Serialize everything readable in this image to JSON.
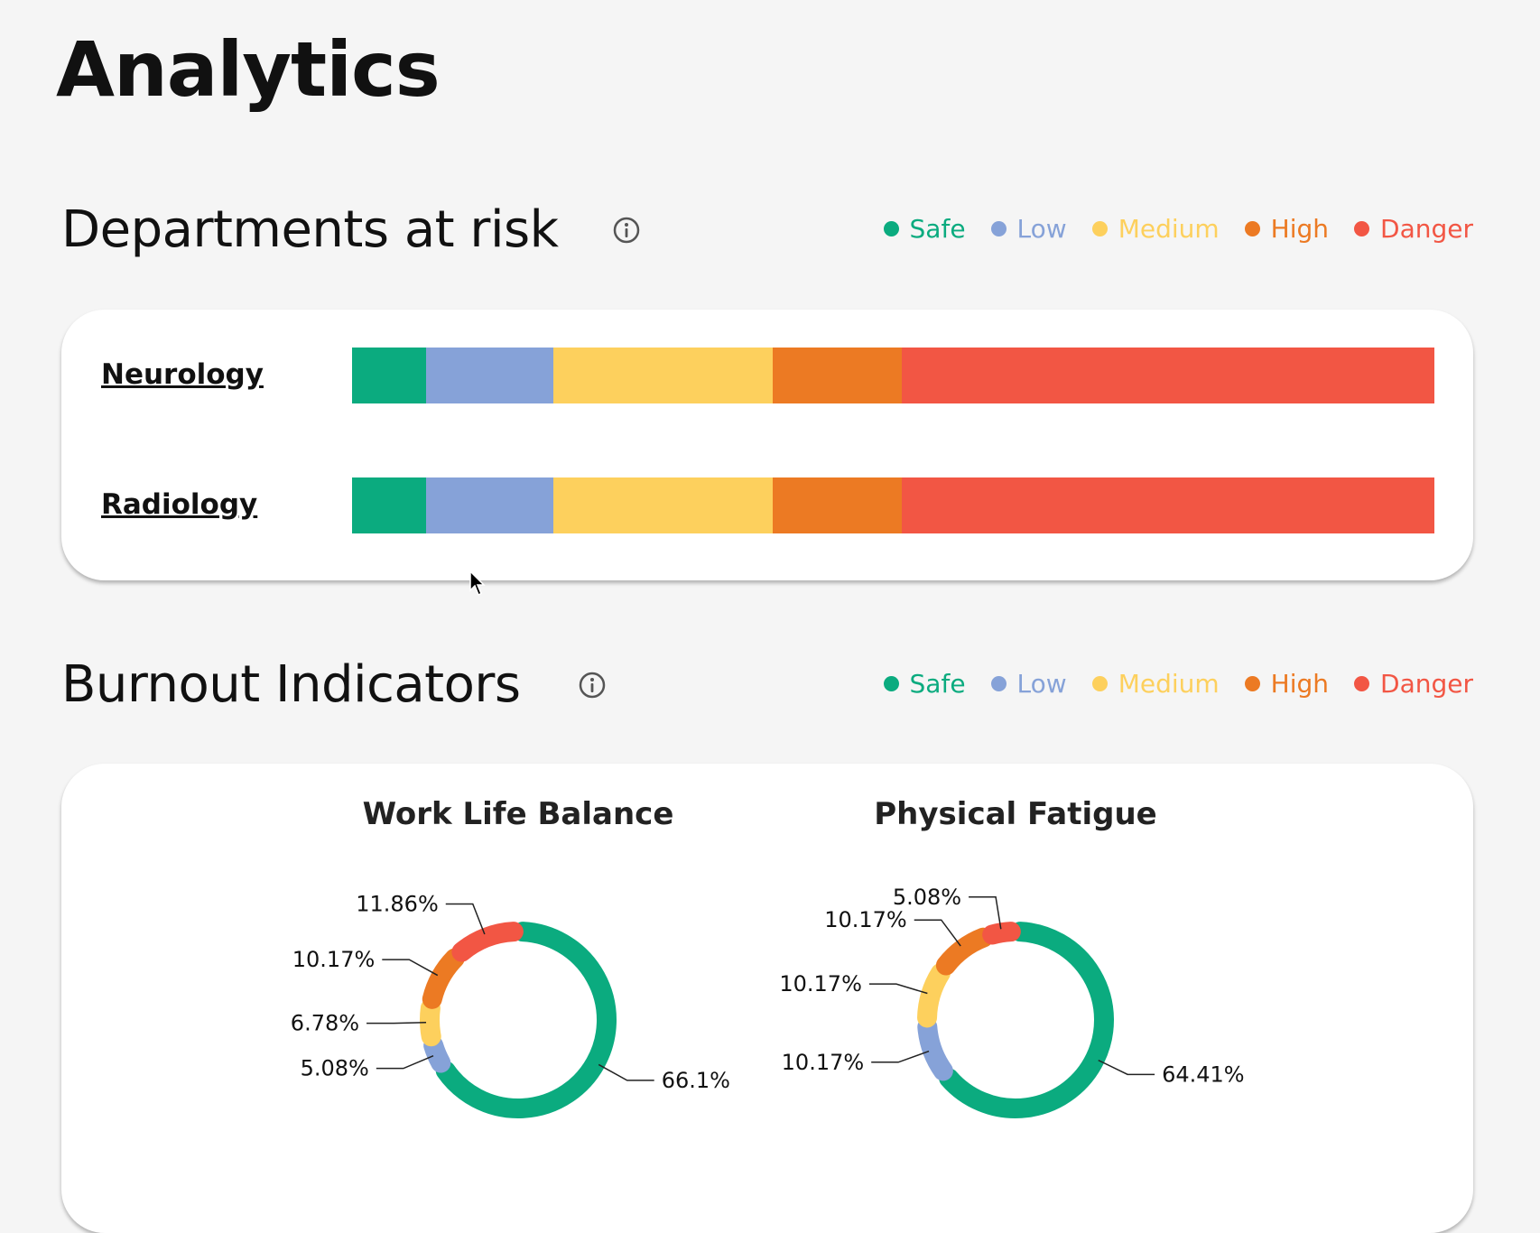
{
  "page": {
    "title": "Analytics"
  },
  "departments": {
    "title": "Departments at risk",
    "legend": [
      {
        "label": "Safe",
        "color": "#0bab7f"
      },
      {
        "label": "Low",
        "color": "#86a2d8"
      },
      {
        "label": "Medium",
        "color": "#fdd05d"
      },
      {
        "label": "High",
        "color": "#ec7a23"
      },
      {
        "label": "Danger",
        "color": "#f25644"
      }
    ],
    "rows": [
      {
        "name": "Neurology",
        "segments": [
          6.8,
          11.8,
          20.3,
          11.9,
          49.2
        ]
      },
      {
        "name": "Radiology",
        "segments": [
          6.8,
          11.8,
          20.3,
          11.9,
          49.2
        ]
      }
    ]
  },
  "burnout": {
    "title": "Burnout Indicators",
    "legend": [
      {
        "label": "Safe",
        "color": "#0bab7f"
      },
      {
        "label": "Low",
        "color": "#86a2d8"
      },
      {
        "label": "Medium",
        "color": "#fdd05d"
      },
      {
        "label": "High",
        "color": "#ec7a23"
      },
      {
        "label": "Danger",
        "color": "#f25644"
      }
    ]
  },
  "chart_data": [
    {
      "type": "pie",
      "title": "Work Life Balance",
      "categories": [
        "Safe",
        "Low",
        "Medium",
        "High",
        "Danger"
      ],
      "values": [
        66.1,
        5.08,
        6.78,
        10.17,
        11.86
      ],
      "labels": [
        "66.1%",
        "5.08%",
        "6.78%",
        "10.17%",
        "11.86%"
      ]
    },
    {
      "type": "pie",
      "title": "Physical Fatigue",
      "categories": [
        "Safe",
        "Low",
        "Medium",
        "High",
        "Danger"
      ],
      "values": [
        64.41,
        10.17,
        10.17,
        10.17,
        5.08
      ],
      "labels": [
        "64.41%",
        "10.17%",
        "10.17%",
        "10.17%",
        "5.08%"
      ]
    }
  ]
}
